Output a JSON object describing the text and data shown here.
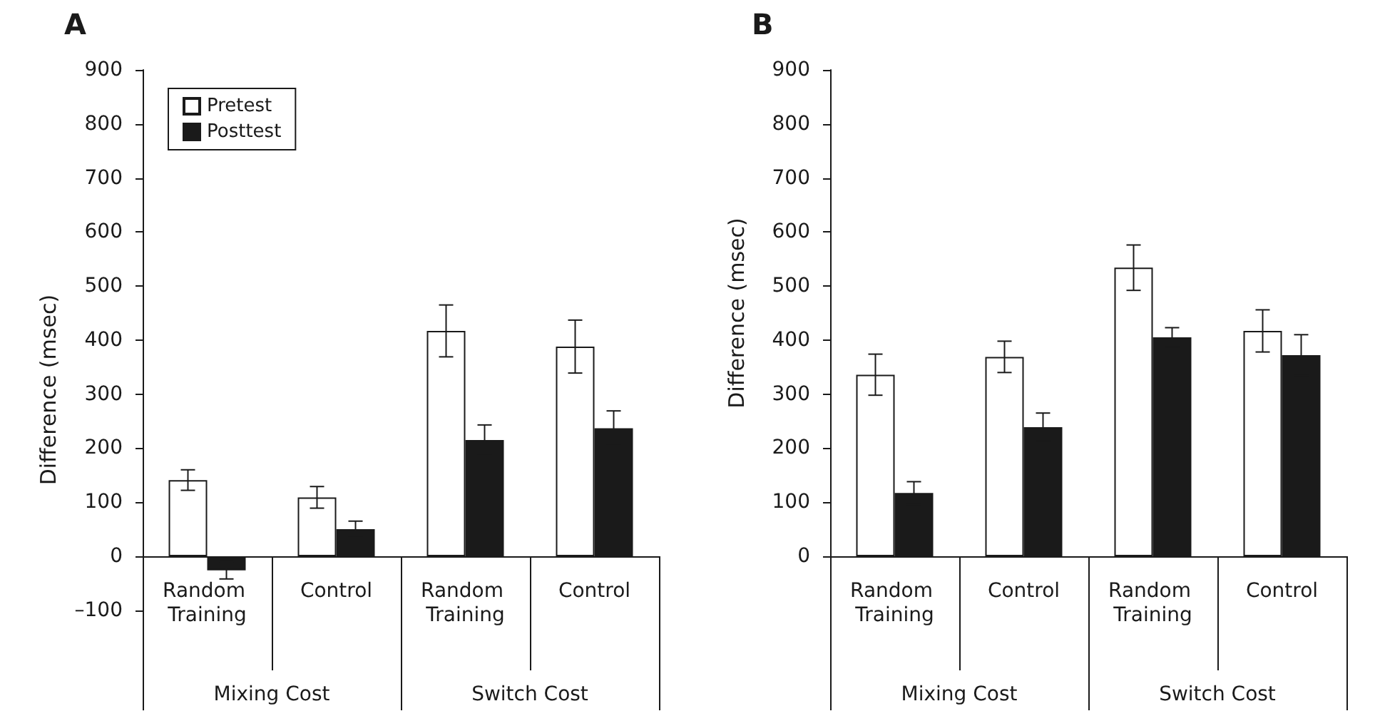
{
  "chart_data": [
    {
      "type": "bar",
      "title": "A",
      "ylabel": "Difference (msec)",
      "categories": [
        "Random Training",
        "Control",
        "Random Training",
        "Control"
      ],
      "ylim": [
        -284,
        900
      ],
      "yticks": [
        {
          "value": -100,
          "label": "–100"
        },
        0,
        100,
        200,
        300,
        400,
        500,
        600,
        700,
        800,
        900
      ],
      "legend": "top left",
      "annotations": [
        "Mixing Cost",
        "Switch Cost"
      ],
      "series": [
        {
          "name": "Pretest",
          "color": "#ffffff",
          "values": [
            141,
            109,
            417,
            388
          ],
          "errors": [
            19,
            20,
            48,
            49
          ]
        },
        {
          "name": "Posttest",
          "color": "#1a1a1a",
          "values": [
            -26,
            50,
            215,
            237
          ],
          "errors": [
            16,
            15,
            28,
            32
          ]
        }
      ]
    },
    {
      "type": "bar",
      "title": "B",
      "ylabel": "Difference (msec)",
      "categories": [
        "Random Training",
        "Control",
        "Random Training",
        "Control"
      ],
      "ylim": [
        0,
        900
      ],
      "yticks": [
        0,
        100,
        200,
        300,
        400,
        500,
        600,
        700,
        800,
        900
      ],
      "annotations": [
        "Mixing Cost",
        "Switch Cost"
      ],
      "series": [
        {
          "color": "#ffffff",
          "values": [
            336,
            369,
            534,
            417
          ],
          "errors": [
            38,
            29,
            42,
            39
          ]
        },
        {
          "color": "#1a1a1a",
          "values": [
            117,
            239,
            405,
            372
          ],
          "errors": [
            21,
            26,
            18,
            38
          ]
        }
      ]
    }
  ]
}
